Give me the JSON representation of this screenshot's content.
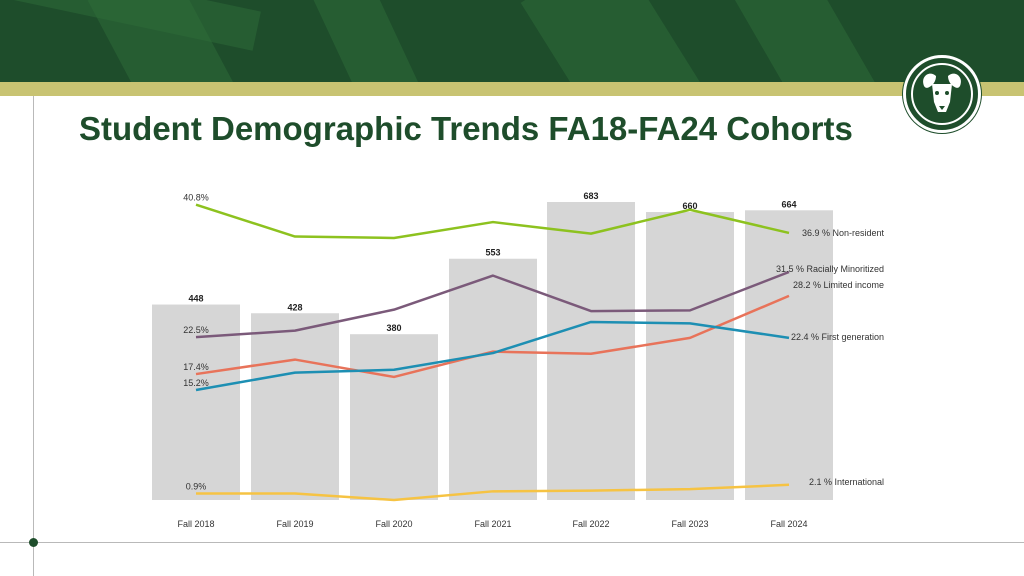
{
  "page": {
    "title": "Student Demographic Trends FA18-FA24 Cohorts",
    "logo_icon": "ram-head-icon"
  },
  "colors": {
    "brand_green": "#1e4d2b",
    "brand_gold": "#c8c372",
    "bar": "#d6d6d6",
    "non_resident": "#8dc21f",
    "racially_minoritized": "#7b5a7a",
    "limited_income": "#e8735a",
    "first_generation": "#1d8fb3",
    "international": "#f6c343"
  },
  "chart_data": {
    "type": "bar",
    "categories": [
      "Fall 2018",
      "Fall 2019",
      "Fall 2020",
      "Fall 2021",
      "Fall 2022",
      "Fall 2023",
      "Fall 2024"
    ],
    "bars": {
      "values": [
        448,
        428,
        380,
        553,
        683,
        660,
        664
      ],
      "labels": [
        "448",
        "428",
        "380",
        "553",
        "683",
        "660",
        "664"
      ],
      "ylim": [
        0,
        683
      ]
    },
    "lines_ylim": [
      0,
      42
    ],
    "series": [
      {
        "key": "non_resident",
        "name": "Non-resident",
        "values": [
          40.8,
          36.4,
          36.2,
          38.4,
          36.8,
          40.1,
          36.9
        ],
        "start_label": "40.8%",
        "end_label": "36.9 % Non-resident"
      },
      {
        "key": "racially_minoritized",
        "name": "Racially Minoritized",
        "values": [
          22.5,
          23.4,
          26.3,
          31.0,
          26.1,
          26.2,
          31.5
        ],
        "start_label": "22.5%",
        "end_label": "31.5 % Racially Minoritized"
      },
      {
        "key": "limited_income",
        "name": "Limited income",
        "values": [
          17.4,
          19.4,
          17.0,
          20.5,
          20.2,
          22.4,
          28.2
        ],
        "start_label": "17.4%",
        "end_label": "28.2 % Limited income"
      },
      {
        "key": "first_generation",
        "name": "First generation",
        "values": [
          15.2,
          17.6,
          18.0,
          20.3,
          24.6,
          24.4,
          22.4
        ],
        "start_label": "15.2%",
        "end_label": "22.4 % First generation"
      },
      {
        "key": "international",
        "name": "International",
        "values": [
          0.9,
          0.9,
          0.0,
          1.2,
          1.3,
          1.5,
          2.1
        ],
        "start_label": "0.9%",
        "end_label": "2.1 % International"
      }
    ],
    "xlabel": "",
    "ylabel": "",
    "grid": false,
    "legend": "none"
  }
}
